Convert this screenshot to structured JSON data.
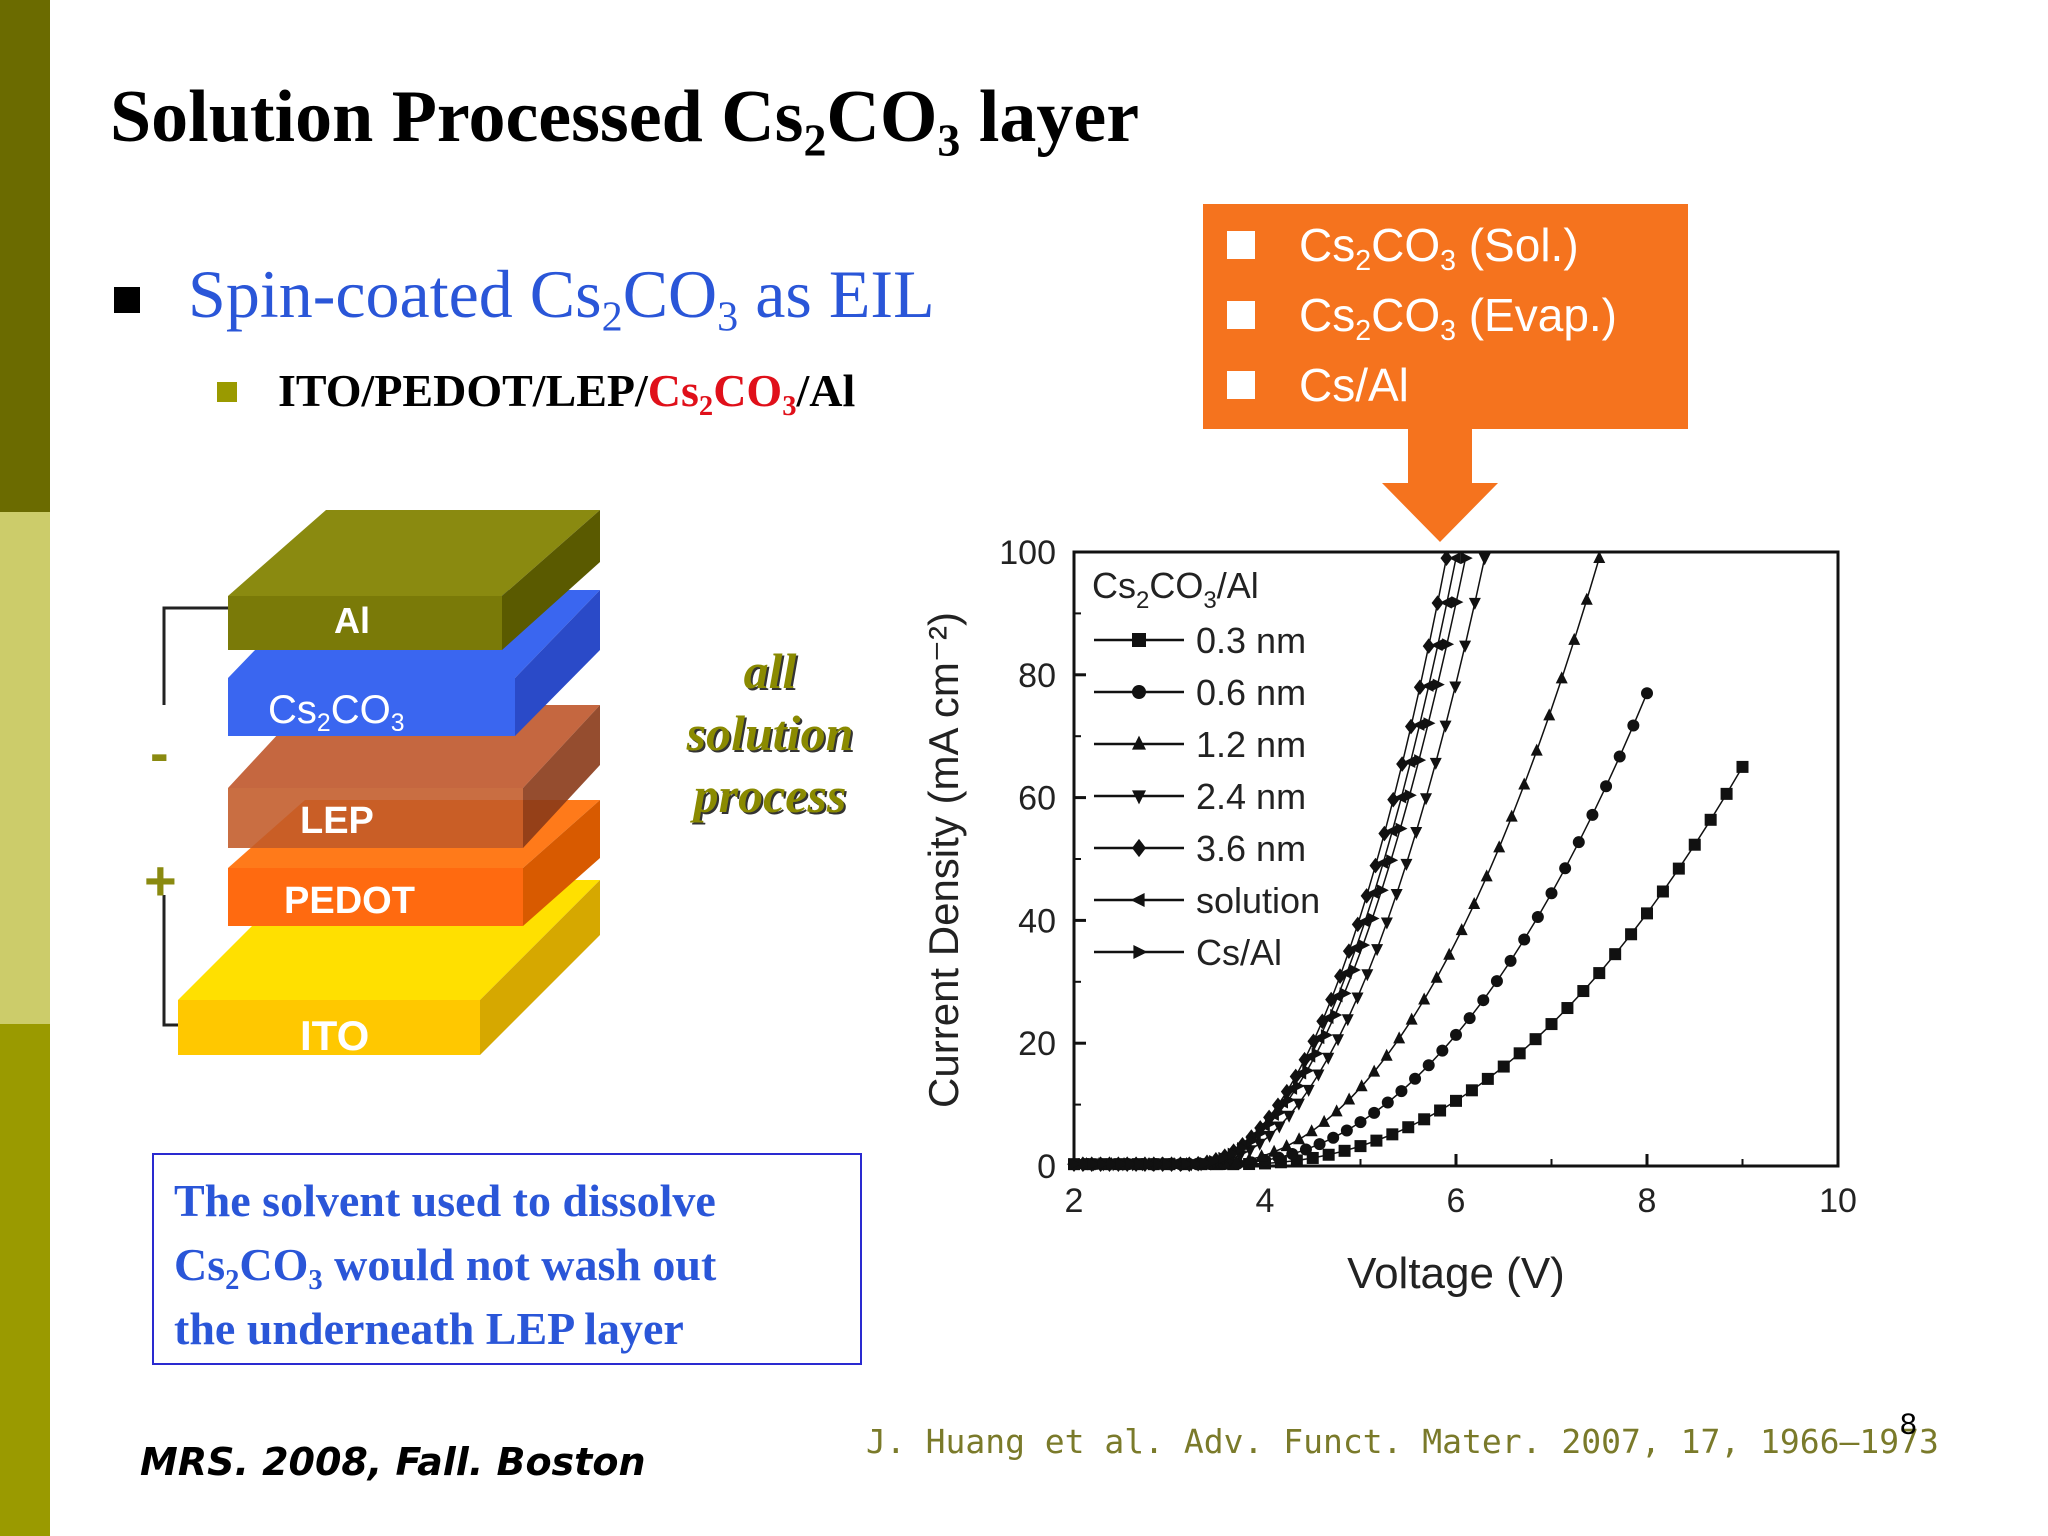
{
  "sidebar": {
    "colors": [
      "#6b6b00",
      "#cccc6a",
      "#9a9a00"
    ]
  },
  "title": {
    "prefix": "Solution Processed Cs",
    "sub1": "2",
    "mid": "CO",
    "sub2": "3",
    "suffix": " layer"
  },
  "bullet1": {
    "prefix": "Spin-coated Cs",
    "sub1": "2",
    "mid": "CO",
    "sub2": "3",
    "suffix": " as EIL"
  },
  "bullet2": {
    "prefix": "ITO/PEDOT/LEP/",
    "red1": "Cs",
    "sub1": "2",
    "red2": "CO",
    "sub2": "3",
    "suffix": "/Al"
  },
  "callout": {
    "items": [
      {
        "text": "Cs",
        "sub1": "2",
        "mid": "CO",
        "sub2": "3",
        "suffix": " (Sol.)"
      },
      {
        "text": "Cs",
        "sub1": "2",
        "mid": "CO",
        "sub2": "3",
        "suffix": " (Evap.)"
      },
      {
        "text": "Cs/Al",
        "sub1": "",
        "mid": "",
        "sub2": "",
        "suffix": ""
      }
    ],
    "color": "#f5731e"
  },
  "device": {
    "layers": {
      "al": "Al",
      "cs2co3": {
        "text": "Cs",
        "sub1": "2",
        "mid": "CO",
        "sub2": "3"
      },
      "lep": "LEP",
      "pedot": "PEDOT",
      "ito": "ITO"
    },
    "minus": "-",
    "plus": "+",
    "all_solution": [
      "all",
      "solution",
      "process"
    ]
  },
  "note": {
    "line1": "The solvent used to dissolve",
    "line2_prefix": "Cs",
    "line2_sub1": "2",
    "line2_mid": "CO",
    "line2_sub2": "3",
    "line2_suffix": " would not wash out",
    "line3": "the underneath LEP layer"
  },
  "reference": "J. Huang et al. Adv. Funct. Mater. 2007, 17, 1966–1973",
  "conference": "MRS. 2008, Fall. Boston",
  "page_number": "8",
  "chart_data": {
    "type": "scatter",
    "xlabel": "Voltage (V)",
    "ylabel": "Current Density (mA cm⁻²)",
    "xlim": [
      2,
      10
    ],
    "ylim": [
      0,
      100
    ],
    "xticks": [
      "2",
      "4",
      "6",
      "8",
      "10"
    ],
    "yticks": [
      "0",
      "20",
      "40",
      "60",
      "80",
      "100"
    ],
    "legend_title": "Cs2CO3/Al",
    "legend_position": "top-left",
    "series": [
      {
        "name": "0.3 nm",
        "marker": "square",
        "v0": 3.7,
        "vend": 9.0,
        "jend": 65
      },
      {
        "name": "0.6 nm",
        "marker": "circle",
        "v0": 3.5,
        "vend": 8.0,
        "jend": 77
      },
      {
        "name": "1.2 nm",
        "marker": "triangle-up",
        "v0": 3.4,
        "vend": 7.5,
        "jend": 99
      },
      {
        "name": "2.4 nm",
        "marker": "triangle-down",
        "v0": 3.3,
        "vend": 6.3,
        "jend": 99
      },
      {
        "name": "3.6 nm",
        "marker": "diamond",
        "v0": 3.2,
        "vend": 5.9,
        "jend": 99
      },
      {
        "name": "solution",
        "marker": "triangle-left",
        "v0": 3.2,
        "vend": 6.0,
        "jend": 99
      },
      {
        "name": "Cs/Al",
        "marker": "triangle-right",
        "v0": 3.2,
        "vend": 6.1,
        "jend": 99
      }
    ]
  }
}
